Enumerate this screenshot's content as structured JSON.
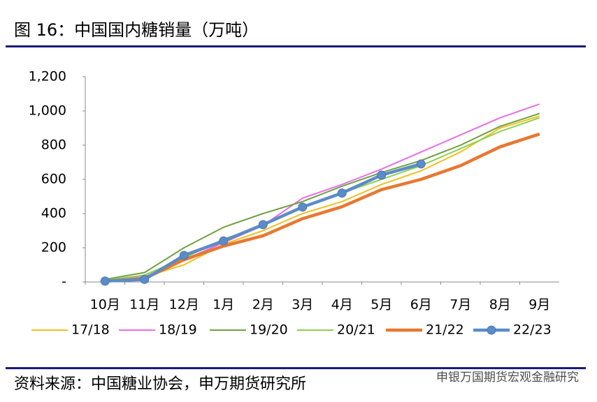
{
  "title": "图 16：中国国内糖销量（万吨）",
  "source": "资料来源：中国糖业协会，申万期货研究所",
  "watermark": "申银万国期货宏观金融研究",
  "chart_data": {
    "type": "line",
    "categories": [
      "10月",
      "11月",
      "12月",
      "1月",
      "2月",
      "3月",
      "4月",
      "5月",
      "6月",
      "7月",
      "8月",
      "9月"
    ],
    "ylim": [
      0,
      1200
    ],
    "yticks": [
      {
        "value": 0,
        "label": "-"
      },
      200,
      400,
      600,
      800,
      {
        "value": 1000,
        "label": "1,000"
      },
      {
        "value": 1200,
        "label": "1,200"
      }
    ],
    "grid": false,
    "legend": "bottom",
    "series": [
      {
        "name": "17/18",
        "color": "#f0c020",
        "values": [
          5,
          30,
          100,
          220,
          300,
          400,
          470,
          570,
          650,
          760,
          900,
          970
        ]
      },
      {
        "name": "18/19",
        "color": "#e86ee8",
        "values": [
          10,
          30,
          130,
          230,
          330,
          490,
          570,
          660,
          760,
          860,
          960,
          1040
        ]
      },
      {
        "name": "19/20",
        "color": "#70a040",
        "values": [
          15,
          55,
          200,
          320,
          400,
          470,
          560,
          640,
          710,
          800,
          910,
          985
        ]
      },
      {
        "name": "20/21",
        "color": "#90d050",
        "values": [
          10,
          40,
          140,
          250,
          330,
          440,
          520,
          600,
          680,
          780,
          880,
          960
        ]
      },
      {
        "name": "21/22",
        "color": "#e87830",
        "values": [
          5,
          20,
          130,
          210,
          270,
          370,
          440,
          540,
          600,
          680,
          790,
          865
        ]
      },
      {
        "name": "22/23",
        "color": "#5b8cc8",
        "values": [
          5,
          15,
          155,
          240,
          335,
          438,
          520,
          625,
          690,
          null,
          null,
          null
        ]
      }
    ]
  }
}
